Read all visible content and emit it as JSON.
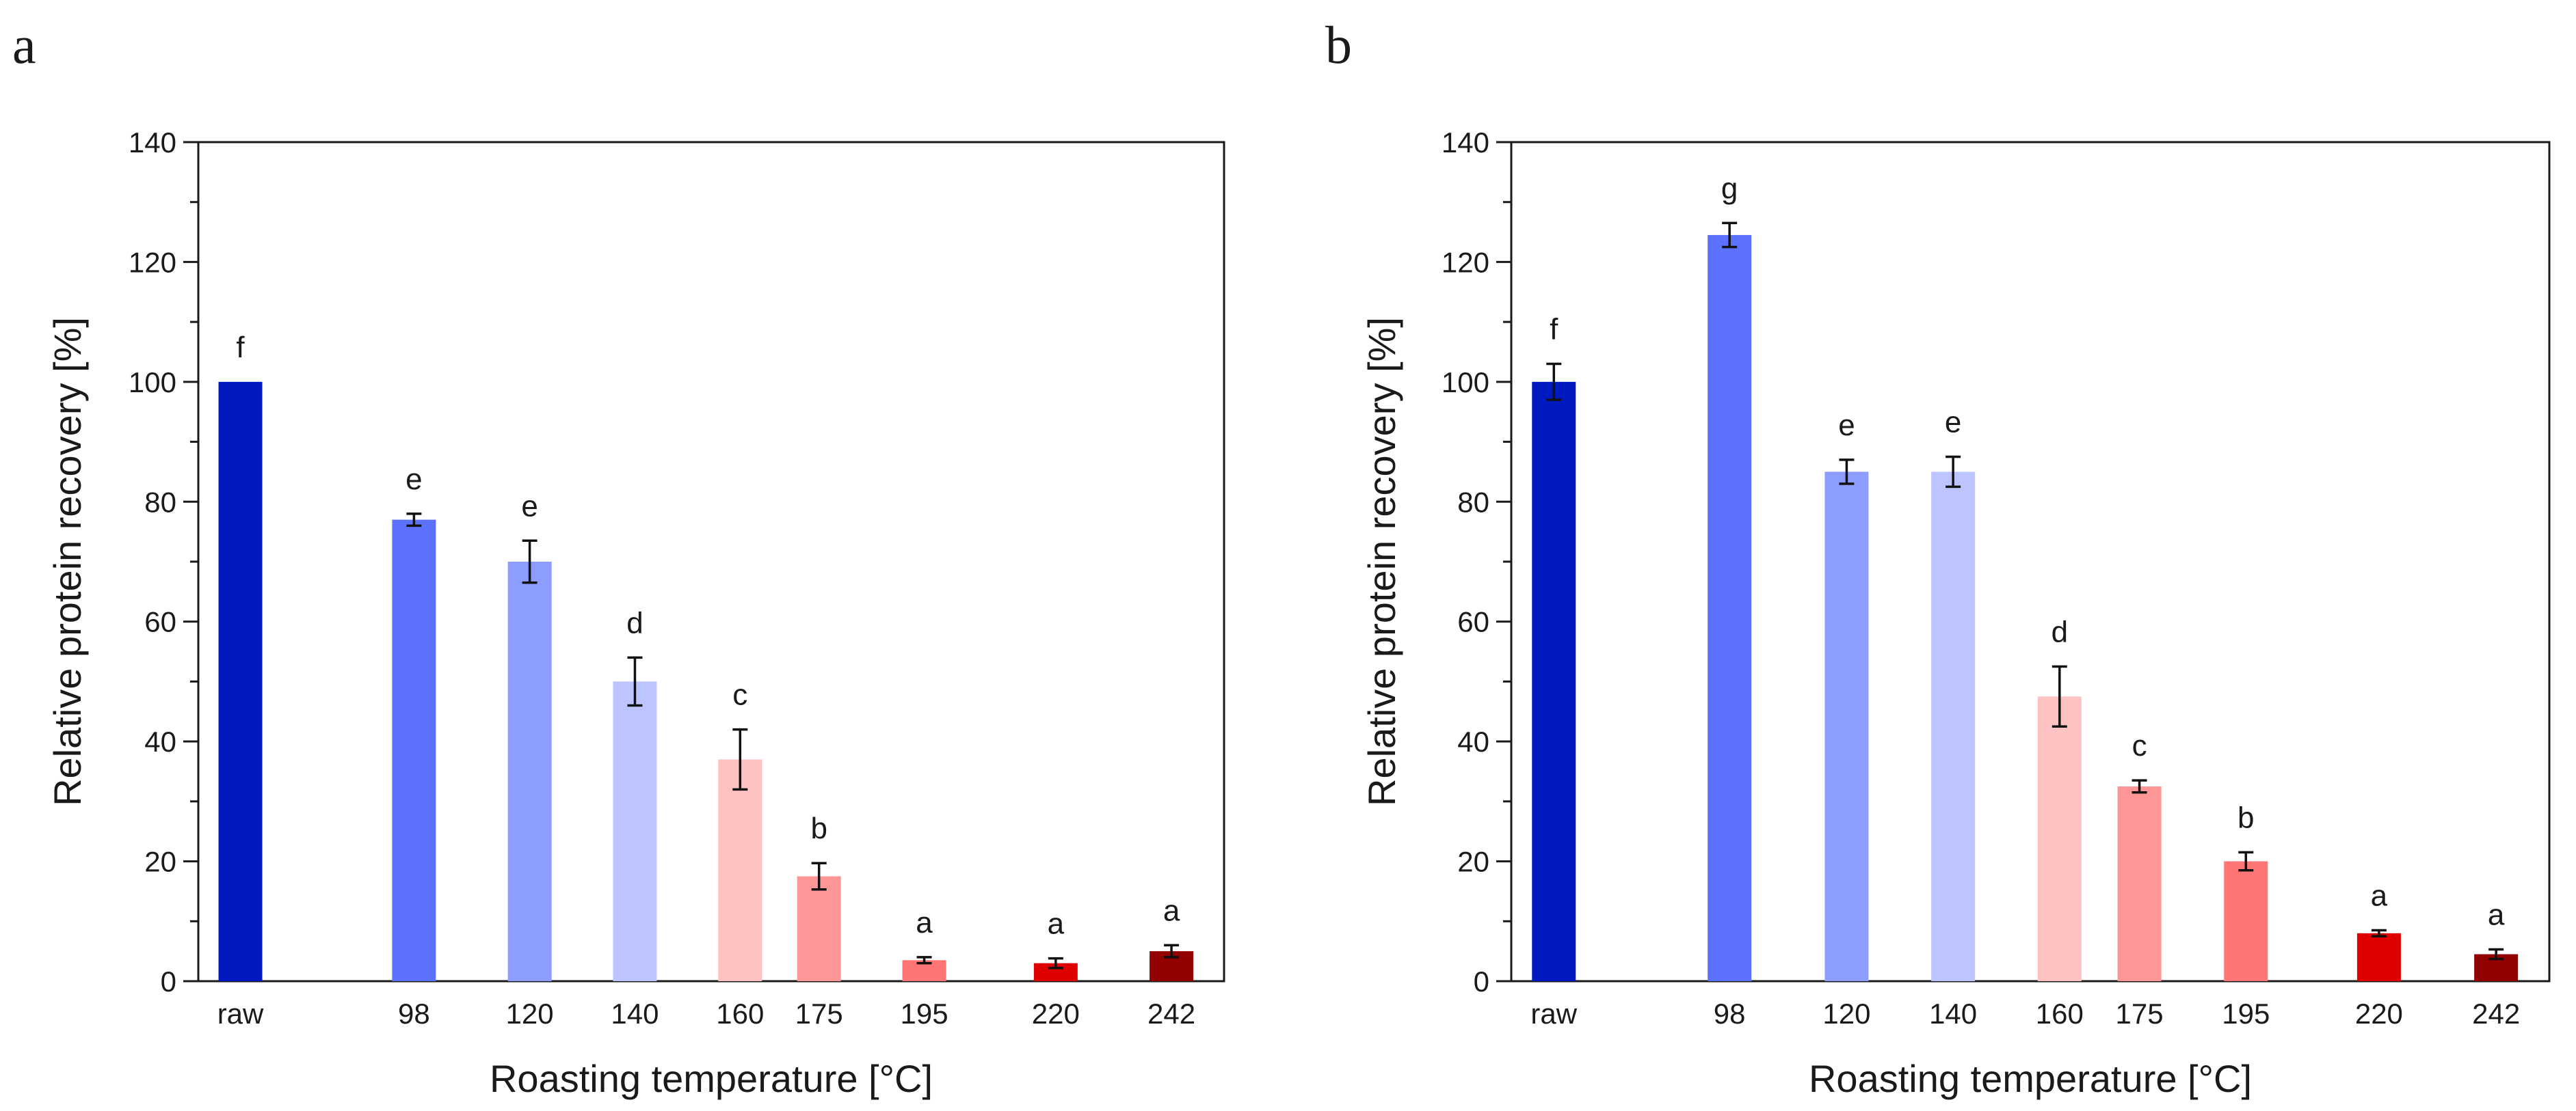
{
  "chart_data": [
    {
      "type": "bar",
      "panel_label": "a",
      "xlabel": "Roasting temperature [°C]",
      "ylabel": "Relative protein recovery [%]",
      "ylim": [
        0,
        140
      ],
      "yticks": [
        "0",
        "20",
        "40",
        "60",
        "80",
        "100",
        "120",
        "140"
      ],
      "categories": [
        "raw",
        "98",
        "120",
        "140",
        "160",
        "175",
        "195",
        "220",
        "242"
      ],
      "x_positions": [
        65,
        98,
        120,
        140,
        160,
        175,
        195,
        220,
        242
      ],
      "xlim": [
        57,
        252
      ],
      "values": [
        100,
        77,
        70,
        50,
        37,
        17.5,
        3.5,
        3,
        5
      ],
      "errors": [
        0,
        1,
        3.5,
        4,
        5,
        2.2,
        0.5,
        0.8,
        1
      ],
      "significance": [
        "f",
        "e",
        "e",
        "d",
        "c",
        "b",
        "a",
        "a",
        "a"
      ],
      "colors": [
        "#0019c0",
        "#5c72ff",
        "#8d9cff",
        "#bcc5ff",
        "#ffc2c2",
        "#ff9696",
        "#ff7474",
        "#df0000",
        "#920000"
      ]
    },
    {
      "type": "bar",
      "panel_label": "b",
      "xlabel": "Roasting temperature [°C]",
      "ylabel": "Relative protein recovery [%]",
      "ylim": [
        0,
        140
      ],
      "yticks": [
        "0",
        "20",
        "40",
        "60",
        "80",
        "100",
        "120",
        "140"
      ],
      "categories": [
        "raw",
        "98",
        "120",
        "140",
        "160",
        "175",
        "195",
        "220",
        "242"
      ],
      "x_positions": [
        65,
        98,
        120,
        140,
        160,
        175,
        195,
        220,
        242
      ],
      "xlim": [
        57,
        252
      ],
      "values": [
        100,
        124.5,
        85,
        85,
        47.5,
        32.5,
        20,
        8,
        4.5
      ],
      "errors": [
        3,
        2,
        2,
        2.5,
        5,
        1,
        1.5,
        0.5,
        0.8
      ],
      "significance": [
        "f",
        "g",
        "e",
        "e",
        "d",
        "c",
        "b",
        "a",
        "a"
      ],
      "colors": [
        "#0019c0",
        "#5c72ff",
        "#8d9cff",
        "#bcc5ff",
        "#ffc2c2",
        "#ff9696",
        "#ff7474",
        "#df0000",
        "#920000"
      ]
    }
  ]
}
